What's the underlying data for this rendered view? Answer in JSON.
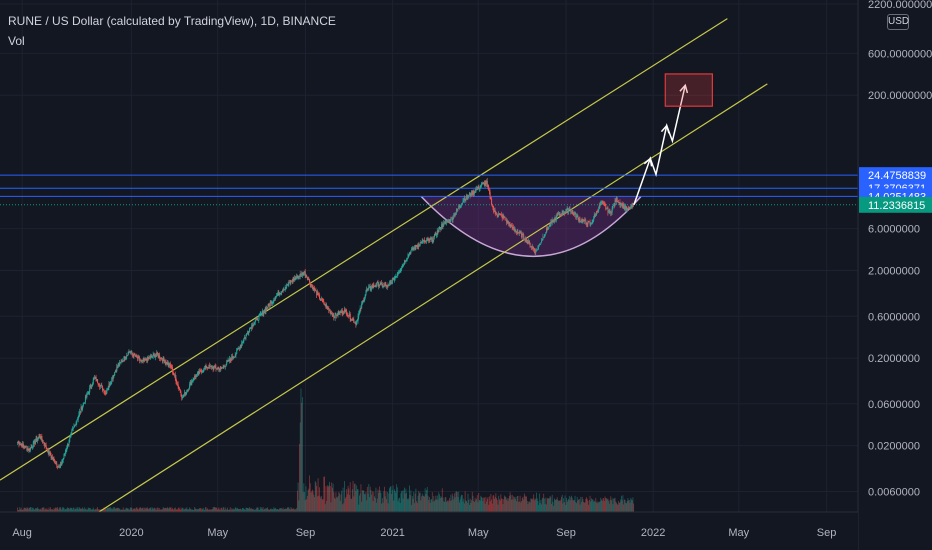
{
  "header": {
    "title": "RUNE / US Dollar (calculated by TradingView), 1D, BINANCE",
    "indicator": "Vol",
    "currency_button": "USD"
  },
  "colors": {
    "background": "#131722",
    "grid": "#1e2230",
    "up_candle": "#26a69a",
    "down_candle": "#ef5350",
    "channel": "#c5c84a",
    "level_line": "#2962ff",
    "price_tag_blue": "#2962ff",
    "price_tag_green": "#089981",
    "cup_fill": "#7b2d8e",
    "target_box": "#e03a3a"
  },
  "chart_data": {
    "type": "candlestick",
    "symbol": "RUNE/USD",
    "interval": "1D",
    "exchange": "BINANCE",
    "y_scale": "log",
    "ylim": [
      0.0035,
      2200
    ],
    "x_range": [
      "2019-07-01",
      "2022-10-15"
    ],
    "x_ticks": [
      {
        "date": "2019-08-01",
        "label": "Aug"
      },
      {
        "date": "2020-01-01",
        "label": "2020"
      },
      {
        "date": "2020-05-01",
        "label": "May"
      },
      {
        "date": "2020-09-01",
        "label": "Sep"
      },
      {
        "date": "2021-01-01",
        "label": "2021"
      },
      {
        "date": "2021-05-01",
        "label": "May"
      },
      {
        "date": "2021-09-01",
        "label": "Sep"
      },
      {
        "date": "2022-01-01",
        "label": "2022"
      },
      {
        "date": "2022-05-01",
        "label": "May"
      },
      {
        "date": "2022-09-01",
        "label": "Sep"
      }
    ],
    "y_ticks": [
      {
        "value": 2200,
        "label": "2200.0000000"
      },
      {
        "value": 600,
        "label": "600.0000000"
      },
      {
        "value": 200,
        "label": "200.0000000"
      },
      {
        "value": 6,
        "label": "6.0000000"
      },
      {
        "value": 2,
        "label": "2.0000000"
      },
      {
        "value": 0.6,
        "label": "0.6000000"
      },
      {
        "value": 0.2,
        "label": "0.2000000"
      },
      {
        "value": 0.06,
        "label": "0.0600000"
      },
      {
        "value": 0.02,
        "label": "0.0200000"
      },
      {
        "value": 0.006,
        "label": "0.0060000"
      }
    ],
    "price_levels": [
      {
        "value": 24.4758839,
        "label": "24.4758839"
      },
      {
        "value": 17.3706371,
        "label": "17.3706371"
      },
      {
        "value": 14.0251483,
        "label": "14.0251483"
      }
    ],
    "last_price": {
      "value": 11.2336815,
      "label": "11.2336815"
    },
    "price_path": [
      [
        "2019-07-25",
        0.022
      ],
      [
        "2019-08-10",
        0.018
      ],
      [
        "2019-08-25",
        0.026
      ],
      [
        "2019-09-10",
        0.015
      ],
      [
        "2019-09-22",
        0.011
      ],
      [
        "2019-10-10",
        0.03
      ],
      [
        "2019-10-25",
        0.06
      ],
      [
        "2019-11-10",
        0.12
      ],
      [
        "2019-11-25",
        0.08
      ],
      [
        "2019-12-10",
        0.15
      ],
      [
        "2019-12-28",
        0.24
      ],
      [
        "2020-01-15",
        0.18
      ],
      [
        "2020-02-05",
        0.22
      ],
      [
        "2020-02-25",
        0.16
      ],
      [
        "2020-03-12",
        0.07
      ],
      [
        "2020-03-28",
        0.12
      ],
      [
        "2020-04-15",
        0.16
      ],
      [
        "2020-05-05",
        0.15
      ],
      [
        "2020-05-25",
        0.22
      ],
      [
        "2020-06-15",
        0.45
      ],
      [
        "2020-07-05",
        0.7
      ],
      [
        "2020-07-25",
        1.1
      ],
      [
        "2020-08-15",
        1.6
      ],
      [
        "2020-08-30",
        1.9
      ],
      [
        "2020-09-10",
        1.3
      ],
      [
        "2020-09-25",
        0.85
      ],
      [
        "2020-10-10",
        0.6
      ],
      [
        "2020-10-25",
        0.7
      ],
      [
        "2020-11-10",
        0.5
      ],
      [
        "2020-11-25",
        1.2
      ],
      [
        "2020-12-10",
        1.4
      ],
      [
        "2020-12-25",
        1.3
      ],
      [
        "2021-01-10",
        2.0
      ],
      [
        "2021-01-25",
        3.3
      ],
      [
        "2021-02-10",
        4.2
      ],
      [
        "2021-02-25",
        4.5
      ],
      [
        "2021-03-10",
        6.5
      ],
      [
        "2021-03-25",
        8.0
      ],
      [
        "2021-04-10",
        13
      ],
      [
        "2021-04-25",
        16
      ],
      [
        "2021-05-05",
        19
      ],
      [
        "2021-05-12",
        20
      ],
      [
        "2021-05-22",
        9.5
      ],
      [
        "2021-06-05",
        8
      ],
      [
        "2021-06-18",
        6
      ],
      [
        "2021-07-01",
        5
      ],
      [
        "2021-07-20",
        3.3
      ],
      [
        "2021-08-05",
        6
      ],
      [
        "2021-08-20",
        8.5
      ],
      [
        "2021-09-05",
        10
      ],
      [
        "2021-09-20",
        7.5
      ],
      [
        "2021-10-05",
        6.8
      ],
      [
        "2021-10-20",
        12
      ],
      [
        "2021-11-01",
        9
      ],
      [
        "2021-11-10",
        13
      ],
      [
        "2021-11-25",
        9.8
      ],
      [
        "2021-12-05",
        11.2
      ]
    ],
    "channel_upper": [
      [
        "2019-07-01",
        0.0081
      ],
      [
        "2022-04-15",
        1500
      ]
    ],
    "channel_lower": [
      [
        "2019-10-01",
        0.002
      ],
      [
        "2022-06-10",
        270
      ]
    ],
    "projection_path": [
      [
        "2021-12-05",
        11.2
      ],
      [
        "2021-12-28",
        38
      ],
      [
        "2022-01-05",
        25
      ],
      [
        "2022-01-20",
        90
      ],
      [
        "2022-01-28",
        60
      ],
      [
        "2022-02-15",
        260
      ]
    ],
    "target_zone": {
      "date_from": "2022-01-18",
      "date_to": "2022-03-25",
      "price_low": 150,
      "price_high": 350
    },
    "cup": {
      "date_from": "2021-02-10",
      "date_to": "2021-12-15",
      "rim_price": 14,
      "bottom_date": "2021-07-20",
      "bottom_price": 2.9
    },
    "volume": {
      "panel": "bottom",
      "peak_date": "2020-08-25"
    }
  }
}
